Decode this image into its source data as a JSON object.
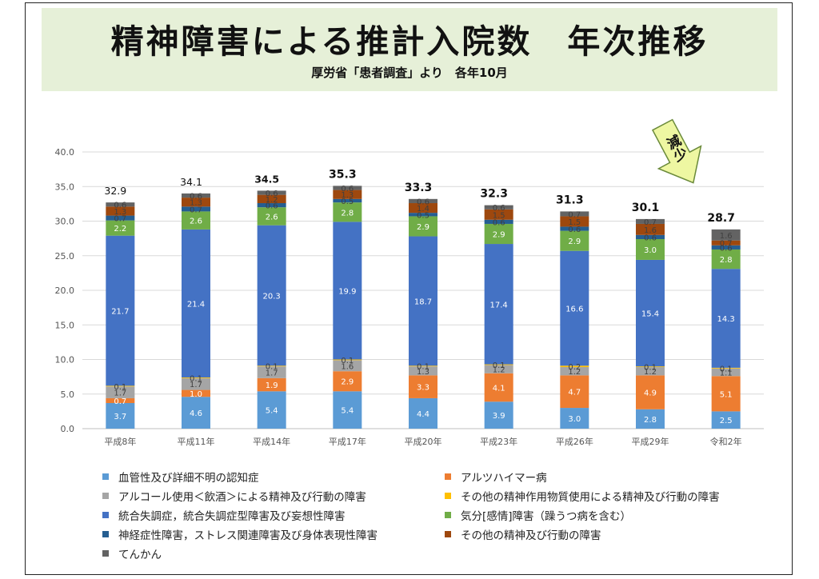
{
  "title": "精神障害による推計入院数　年次推移",
  "subtitle": "厚労省「患者調査」より　各年10月",
  "annotation": "減少",
  "chart_data": {
    "type": "bar",
    "stacked": true,
    "categories": [
      "平成8年",
      "平成11年",
      "平成14年",
      "平成17年",
      "平成20年",
      "平成23年",
      "平成26年",
      "平成29年",
      "令和2年"
    ],
    "ylim": [
      0,
      40
    ],
    "yticks": [
      "0.0",
      "5.0",
      "10.0",
      "15.0",
      "20.0",
      "25.0",
      "30.0",
      "35.0",
      "40.0"
    ],
    "grid": true,
    "legend_position": "bottom",
    "totals": [
      "32.9",
      "34.1",
      "34.5",
      "35.3",
      "33.3",
      "32.3",
      "31.3",
      "30.1",
      "28.7"
    ],
    "series": [
      {
        "name": "血管性及び詳細不明の認知症",
        "color": "#5b9bd5",
        "values": [
          3.7,
          4.6,
          5.4,
          5.4,
          4.4,
          3.9,
          3.0,
          2.8,
          2.5
        ]
      },
      {
        "name": "アルツハイマー病",
        "color": "#ed7d31",
        "values": [
          0.7,
          1.0,
          1.9,
          2.9,
          3.3,
          4.1,
          4.7,
          4.9,
          5.1
        ]
      },
      {
        "name": "アルコール使用＜飲酒＞による精神及び行動の障害",
        "color": "#a5a5a5",
        "values": [
          1.7,
          1.7,
          1.7,
          1.6,
          1.3,
          1.2,
          1.2,
          1.2,
          1.1
        ]
      },
      {
        "name": "その他の精神作用物質使用による精神及び行動の障害",
        "color": "#ffc000",
        "values": [
          0.1,
          0.1,
          0.1,
          0.1,
          0.1,
          0.1,
          0.2,
          0.1,
          0.1
        ]
      },
      {
        "name": "統合失調症，統合失調症型障害及び妄想性障害",
        "color": "#4472c4",
        "values": [
          21.7,
          21.4,
          20.3,
          19.9,
          18.7,
          17.4,
          16.6,
          15.4,
          14.3
        ]
      },
      {
        "name": "気分[感情]障害（躁うつ病を含む）",
        "color": "#70ad47",
        "values": [
          2.2,
          2.6,
          2.6,
          2.8,
          2.9,
          2.9,
          2.9,
          3.0,
          2.8
        ]
      },
      {
        "name": "神経症性障害，ストレス関連障害及び身体表現性障害",
        "color": "#255e91",
        "values": [
          0.7,
          0.7,
          0.6,
          0.5,
          0.5,
          0.6,
          0.6,
          0.6,
          0.6
        ]
      },
      {
        "name": "その他の精神及び行動の障害",
        "color": "#9e480e",
        "values": [
          1.3,
          1.3,
          1.2,
          1.3,
          1.4,
          1.5,
          1.5,
          1.6,
          0.7
        ]
      },
      {
        "name": "てんかん",
        "color": "#636363",
        "values": [
          0.6,
          0.6,
          0.6,
          0.6,
          0.6,
          0.6,
          0.7,
          0.7,
          1.6
        ]
      }
    ]
  }
}
